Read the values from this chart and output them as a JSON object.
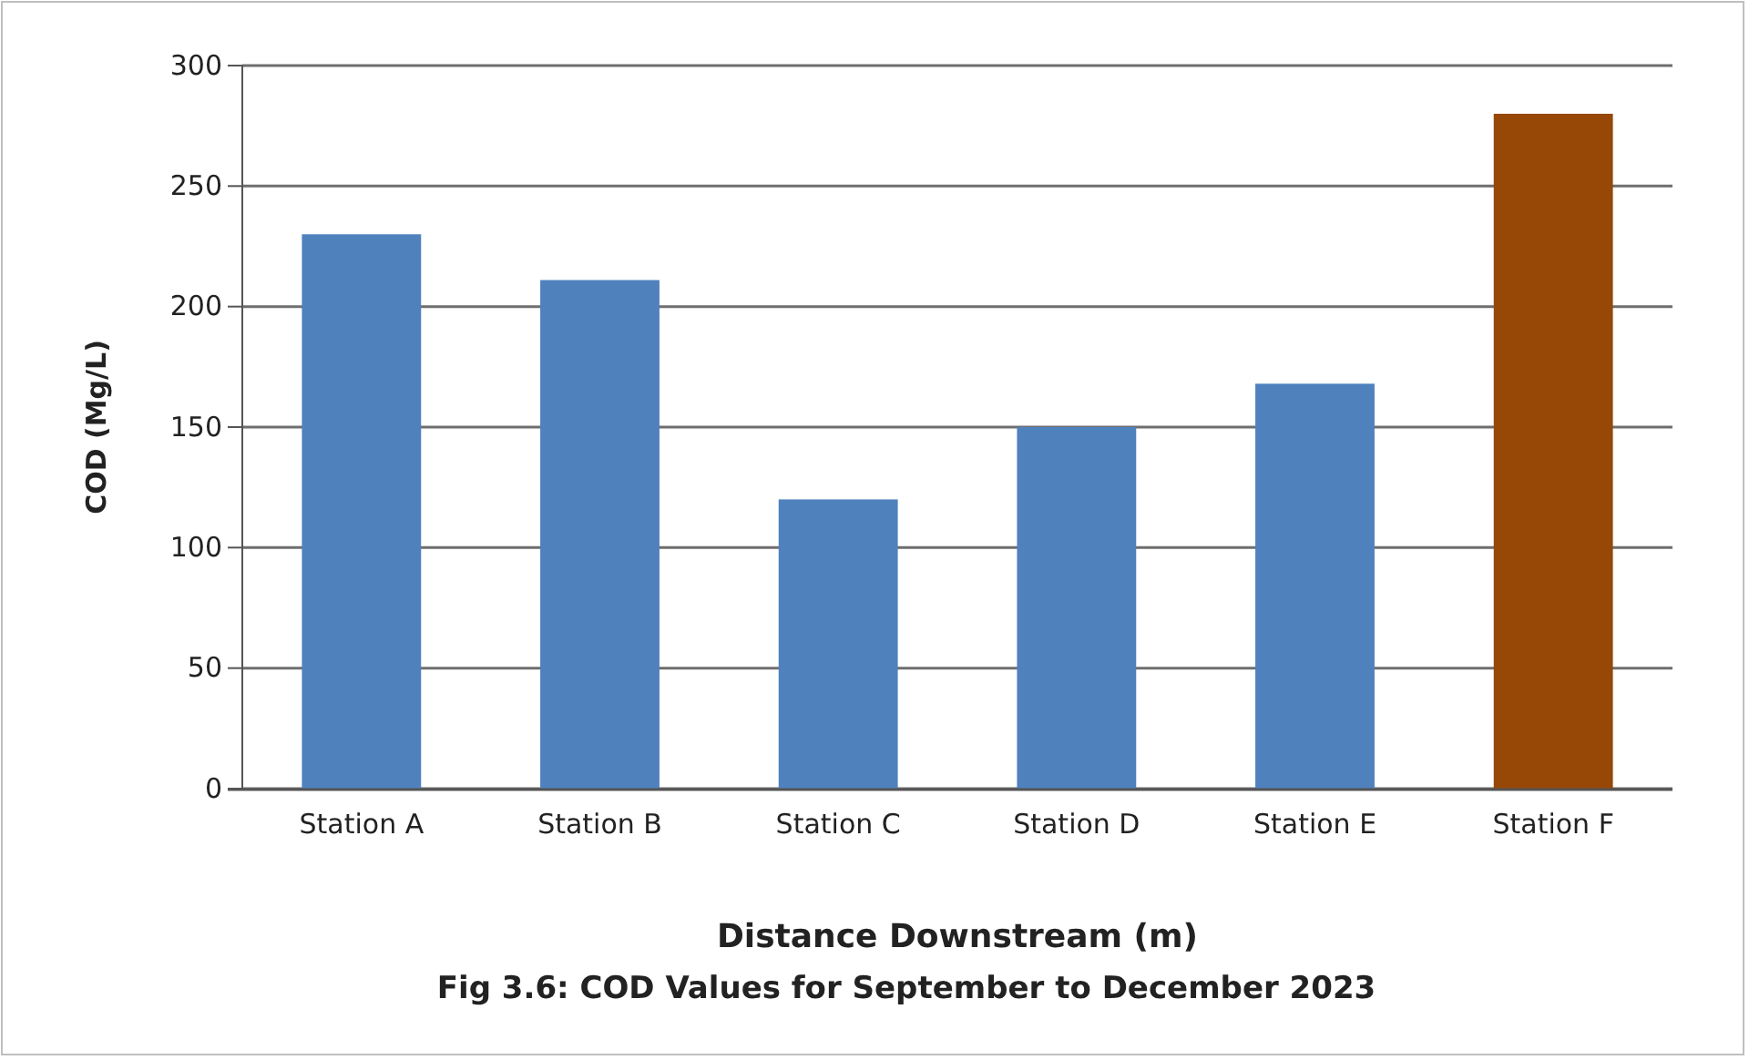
{
  "chart_data": {
    "type": "bar",
    "title": "Fig 3.6: COD Values for September to December 2023",
    "xlabel": "Distance Downstream (m)",
    "ylabel": "COD (Mg/L)",
    "categories": [
      "Station A",
      "Station B",
      "Station C",
      "Station D",
      "Station E",
      "Station F"
    ],
    "values": [
      230,
      211,
      120,
      150,
      168,
      280
    ],
    "colors": [
      "#4f81bd",
      "#4f81bd",
      "#4f81bd",
      "#4f81bd",
      "#4f81bd",
      "#974706"
    ],
    "ylim": [
      0,
      300
    ],
    "yticks": [
      0,
      50,
      100,
      150,
      200,
      250,
      300
    ],
    "grid": "y"
  }
}
